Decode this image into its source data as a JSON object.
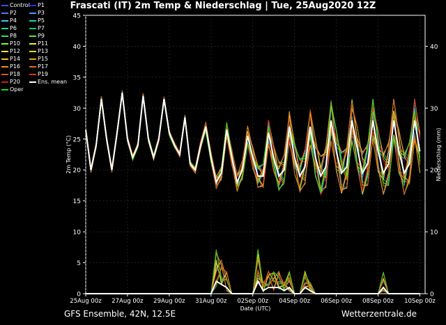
{
  "chart_data": {
    "type": "line",
    "title": "Frascati  (IT)  2m Temp & Niederschlag | Tue, 25Aug2020 12Z",
    "xlabel": "Date (UTC)",
    "ylabel_left": "2m Temp (°C)",
    "ylabel_right": "Niederschlag (mm)",
    "ylim_left": [
      0,
      45
    ],
    "ylim_right": [
      0,
      45
    ],
    "left_ticks": [
      0,
      5,
      10,
      15,
      20,
      25,
      30,
      35,
      40,
      45
    ],
    "right_ticks": [
      0,
      10,
      20,
      30,
      40
    ],
    "x_ticks": [
      "25Aug 00z",
      "27Aug 00z",
      "29Aug 00z",
      "31Aug 00z",
      "02Sep 00z",
      "04Sep 00z",
      "06Sep 00z",
      "08Sep 00z",
      "10Sep 00z"
    ],
    "x_range_days": [
      0,
      16.25
    ],
    "legend": [
      {
        "name": "Control",
        "color": "#3c50ff"
      },
      {
        "name": "P1",
        "color": "#2a2ad8"
      },
      {
        "name": "P2",
        "color": "#4f7cff"
      },
      {
        "name": "P3",
        "color": "#2fa8ff"
      },
      {
        "name": "P4",
        "color": "#3fc8ff"
      },
      {
        "name": "P5",
        "color": "#1ad0c8"
      },
      {
        "name": "P6",
        "color": "#22d6a0"
      },
      {
        "name": "P7",
        "color": "#14c070"
      },
      {
        "name": "P8",
        "color": "#30e070"
      },
      {
        "name": "P9",
        "color": "#50ee50"
      },
      {
        "name": "P10",
        "color": "#80ff20"
      },
      {
        "name": "P11",
        "color": "#d8ff20"
      },
      {
        "name": "P12",
        "color": "#ffe040"
      },
      {
        "name": "P13",
        "color": "#ffd030"
      },
      {
        "name": "P14",
        "color": "#ffc020"
      },
      {
        "name": "P15",
        "color": "#f0a020"
      },
      {
        "name": "P16",
        "color": "#f09010"
      },
      {
        "name": "P17",
        "color": "#e07010"
      },
      {
        "name": "P18",
        "color": "#e05010"
      },
      {
        "name": "P19",
        "color": "#d83a10"
      },
      {
        "name": "P20",
        "color": "#c82020"
      },
      {
        "name": "Ens. mean",
        "color": "#ffffff"
      },
      {
        "name": "Oper",
        "color": "#10e010"
      }
    ],
    "temperature_mean": {
      "x_days": [
        0,
        0.25,
        0.5,
        0.75,
        1,
        1.25,
        1.5,
        1.75,
        2,
        2.25,
        2.5,
        2.75,
        3,
        3.25,
        3.5,
        3.75,
        4,
        4.25,
        4.5,
        4.75,
        5,
        5.25,
        5.5,
        5.75,
        6,
        6.25,
        6.5,
        6.75,
        7,
        7.25,
        7.5,
        7.75,
        8,
        8.25,
        8.5,
        8.75,
        9,
        9.25,
        9.5,
        9.75,
        10,
        10.25,
        10.5,
        10.75,
        11,
        11.25,
        11.5,
        11.75,
        12,
        12.25,
        12.5,
        12.75,
        13,
        13.25,
        13.5,
        13.75,
        14,
        14.25,
        14.5,
        14.75,
        15,
        15.25,
        15.5,
        15.75,
        16
      ],
      "values": [
        26.5,
        20,
        24,
        31.5,
        25,
        20,
        26,
        32.5,
        25,
        22,
        24,
        32,
        25,
        22,
        25,
        31.5,
        26,
        24,
        22.5,
        28.5,
        21,
        20,
        24,
        27,
        22,
        18,
        19.5,
        26.5,
        22,
        18,
        20,
        25.5,
        22,
        19,
        19,
        26,
        22,
        19,
        20,
        27,
        22,
        19,
        20.5,
        27,
        22,
        19,
        20.5,
        28,
        23,
        19.5,
        20.5,
        28,
        23.5,
        19.5,
        21,
        28,
        23,
        19.5,
        21,
        28,
        23,
        19.5,
        21,
        28,
        23
      ]
    },
    "precipitation_mean": {
      "x_days": [
        0,
        6,
        6.25,
        6.5,
        6.75,
        7,
        7.25,
        8,
        8.25,
        8.5,
        8.75,
        9,
        9.25,
        9.5,
        9.75,
        10,
        10.25,
        10.5,
        10.75,
        11,
        14,
        14.25,
        14.5,
        16
      ],
      "values": [
        0,
        0,
        2,
        1.5,
        1,
        0,
        0,
        0,
        2,
        0.5,
        1,
        1,
        1,
        0.5,
        1,
        0,
        0,
        1,
        0.5,
        0,
        0,
        1,
        0,
        0
      ]
    }
  },
  "footer": {
    "left": "GFS Ensemble, 42N, 12.5E",
    "right": "Wetterzentrale.de"
  }
}
